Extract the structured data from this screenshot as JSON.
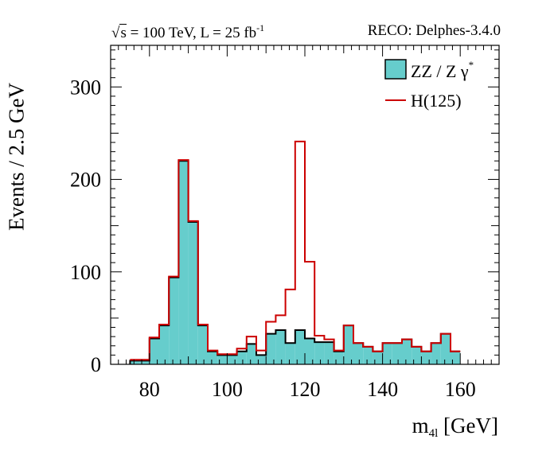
{
  "header": {
    "left_sqrt": "s",
    "left_rest": " = 100 TeV, L = 25 fb",
    "left_sup": "-1",
    "right": "RECO: Delphes-3.4.0"
  },
  "axis": {
    "ylabel": "Events / 2.5 GeV",
    "xlabel_main": "m",
    "xlabel_sub": "4l",
    "xlabel_unit": " [GeV]"
  },
  "legend": {
    "bkg_label": "ZZ / Z γ",
    "bkg_sup": "*",
    "sig_label": "H(125)"
  },
  "colors": {
    "background_fill": "#66cdcc",
    "signal_line": "#cc0000",
    "axis": "#000000"
  },
  "chart_data": {
    "type": "histogram",
    "xlim": [
      70,
      170
    ],
    "ylim": [
      0,
      345
    ],
    "bin_width": 2.5,
    "xlabel": "m4l [GeV]",
    "ylabel": "Events / 2.5 GeV",
    "x_ticks": [
      80,
      100,
      120,
      140,
      160
    ],
    "y_ticks": [
      0,
      100,
      200,
      300
    ],
    "bin_edges_start": 75,
    "series": [
      {
        "name": "ZZ / Z γ*",
        "style": "filled",
        "values": [
          4,
          4,
          28,
          42,
          94,
          220,
          154,
          42,
          14,
          10,
          10,
          14,
          22,
          10,
          33,
          37,
          23,
          37,
          28,
          24,
          24,
          14,
          42,
          23,
          19,
          14,
          23,
          23,
          27,
          19,
          14,
          23,
          33,
          14
        ]
      },
      {
        "name": "H(125)",
        "style": "step",
        "values": [
          5,
          5,
          29,
          43,
          95,
          221,
          155,
          43,
          15,
          11,
          11,
          17,
          30,
          15,
          46,
          53,
          81,
          241,
          111,
          31,
          27,
          15,
          42,
          23,
          19,
          14,
          23,
          23,
          27,
          19,
          14,
          23,
          33,
          14
        ]
      }
    ]
  }
}
